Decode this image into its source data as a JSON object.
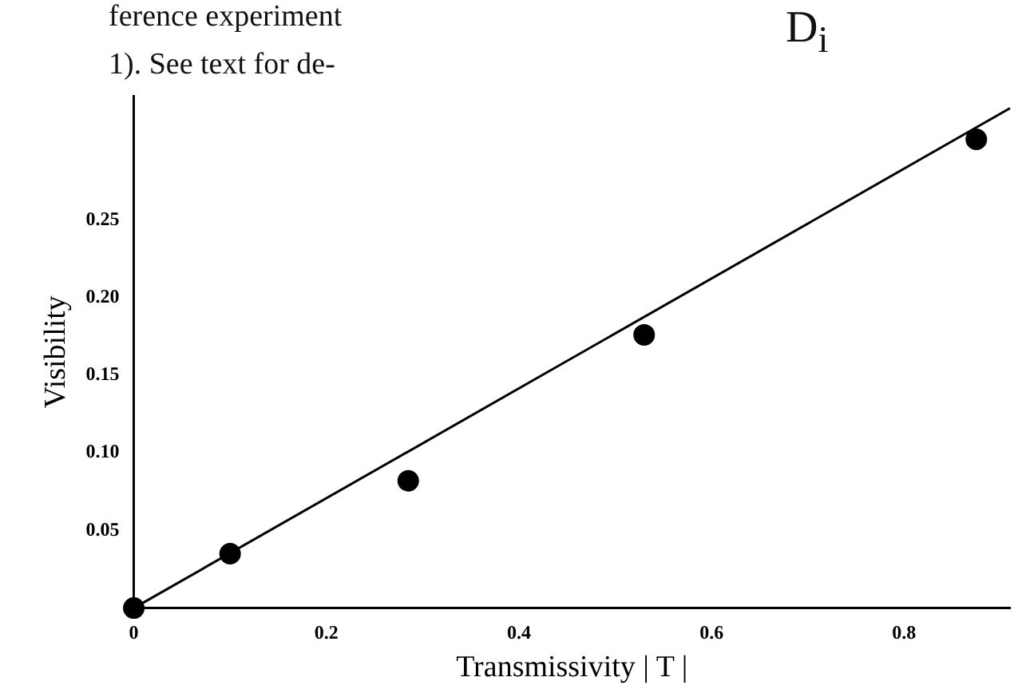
{
  "chart_data": {
    "type": "scatter",
    "xlabel": "Transmissivity | T |",
    "ylabel": "Visibility",
    "annotations": [
      "ference experiment",
      "1). See text for de-",
      "D$_{i}$"
    ],
    "series": [
      {
        "color": "#000000",
        "x": [
          0,
          0.1,
          0.285,
          0.53,
          0.875
        ],
        "values": [
          0,
          0.035,
          0.082,
          0.176,
          0.302
        ],
        "marker": "circle"
      },
      {
        "type": "line",
        "color": "#000000",
        "x": [
          0,
          0.91
        ],
        "values": [
          0,
          0.322
        ],
        "marker": "none"
      }
    ],
    "xlim": [
      0,
      0.91
    ],
    "xticks": [
      0,
      0.2,
      0.4,
      0.6,
      0.8
    ],
    "ylim": [
      0,
      0.33
    ],
    "yticks": [
      0.05,
      {
        "value": 0.1,
        "label": "0.10"
      },
      0.15,
      {
        "value": 0.2,
        "label": "0.20"
      },
      0.25
    ],
    "grid": false,
    "legend": false
  }
}
